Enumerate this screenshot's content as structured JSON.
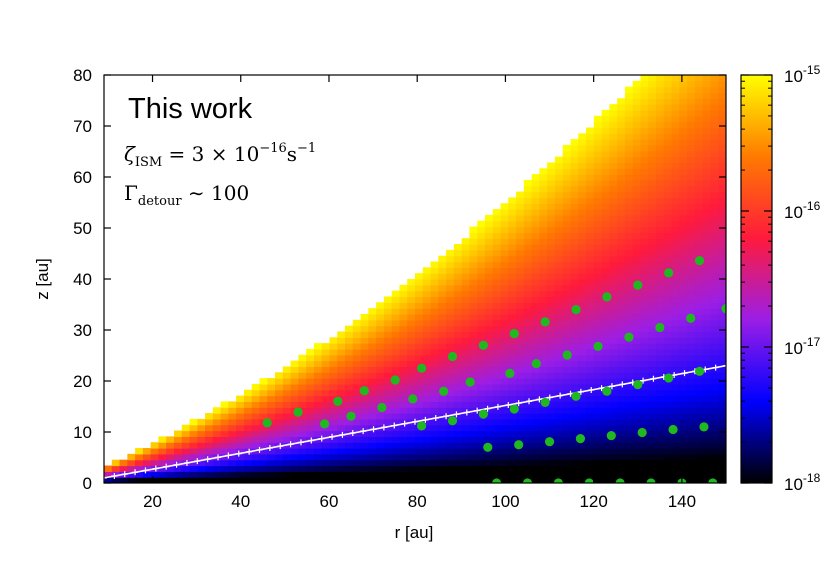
{
  "chart_data": {
    "type": "heatmap",
    "title": "",
    "xlabel": "r [au]",
    "ylabel": "z [au]",
    "xlim": [
      9,
      150
    ],
    "ylim": [
      0,
      80
    ],
    "xticks": [
      20,
      40,
      60,
      80,
      100,
      120,
      140
    ],
    "yticks": [
      0,
      10,
      20,
      30,
      40,
      50,
      60,
      70,
      80
    ],
    "grid": false,
    "colorbar": {
      "scale": "log",
      "range": [
        1e-18,
        1e-15
      ],
      "tick_labels": [
        {
          "base": "10",
          "exp": "-15",
          "value": 1e-15
        },
        {
          "base": "10",
          "exp": "-16",
          "value": 1e-16
        },
        {
          "base": "10",
          "exp": "-17",
          "value": 1e-17
        },
        {
          "base": "10",
          "exp": "-18",
          "value": 1e-18
        }
      ],
      "colormap": [
        "#000000",
        "#0000ff",
        "#9b1ee6",
        "#ff1a3c",
        "#ff7a00",
        "#ffff00"
      ]
    },
    "surface": {
      "description_free": true,
      "z_over_r_max": 0.6
    },
    "annotations": {
      "label": "This work",
      "zeta": {
        "symbol": "ζ",
        "sub": "ISM",
        "expr": " = 3 × 10",
        "exp": "−16",
        "unit": "s",
        "unit_exp": "−1"
      },
      "gamma": {
        "symbol": "Γ",
        "sub": "detour",
        "expr": " ∼ 100"
      }
    },
    "series": [
      {
        "type": "line",
        "color": "#ffffff",
        "marker": "plus",
        "x": [
          9,
          150
        ],
        "y": [
          1.0,
          23.0
        ]
      },
      {
        "type": "scatter",
        "color": "#1fb81f",
        "points": [
          [
            46,
            11.8
          ],
          [
            53,
            13.9
          ],
          [
            59,
            11.6
          ],
          [
            62,
            16.0
          ],
          [
            65,
            13.1
          ],
          [
            68,
            18.1
          ],
          [
            72,
            14.8
          ],
          [
            75,
            20.2
          ],
          [
            79,
            16.5
          ],
          [
            81,
            22.5
          ],
          [
            81,
            11.2
          ],
          [
            86,
            18.0
          ],
          [
            88,
            24.8
          ],
          [
            88,
            12.2
          ],
          [
            92,
            19.8
          ],
          [
            95,
            27.0
          ],
          [
            95,
            13.5
          ],
          [
            96,
            7.0
          ],
          [
            98,
            0.0
          ],
          [
            101,
            21.5
          ],
          [
            102,
            14.5
          ],
          [
            102,
            29.3
          ],
          [
            103,
            7.5
          ],
          [
            105,
            0.0
          ],
          [
            107,
            23.4
          ],
          [
            109,
            31.6
          ],
          [
            109,
            15.8
          ],
          [
            110,
            8.1
          ],
          [
            112,
            0.0
          ],
          [
            114,
            25.1
          ],
          [
            116,
            34.0
          ],
          [
            116,
            17.0
          ],
          [
            117,
            8.7
          ],
          [
            119,
            0.0
          ],
          [
            121,
            26.8
          ],
          [
            123,
            36.5
          ],
          [
            123,
            18.0
          ],
          [
            124,
            9.3
          ],
          [
            126,
            0.0
          ],
          [
            128,
            28.6
          ],
          [
            130,
            38.8
          ],
          [
            130,
            19.3
          ],
          [
            131,
            9.9
          ],
          [
            133,
            0.0
          ],
          [
            135,
            30.5
          ],
          [
            137,
            41.2
          ],
          [
            137,
            20.6
          ],
          [
            138,
            10.5
          ],
          [
            140,
            0.0
          ],
          [
            142,
            32.3
          ],
          [
            144,
            43.6
          ],
          [
            144,
            21.9
          ],
          [
            145,
            11.0
          ],
          [
            147,
            0.0
          ],
          [
            150,
            34.2
          ]
        ]
      }
    ]
  }
}
